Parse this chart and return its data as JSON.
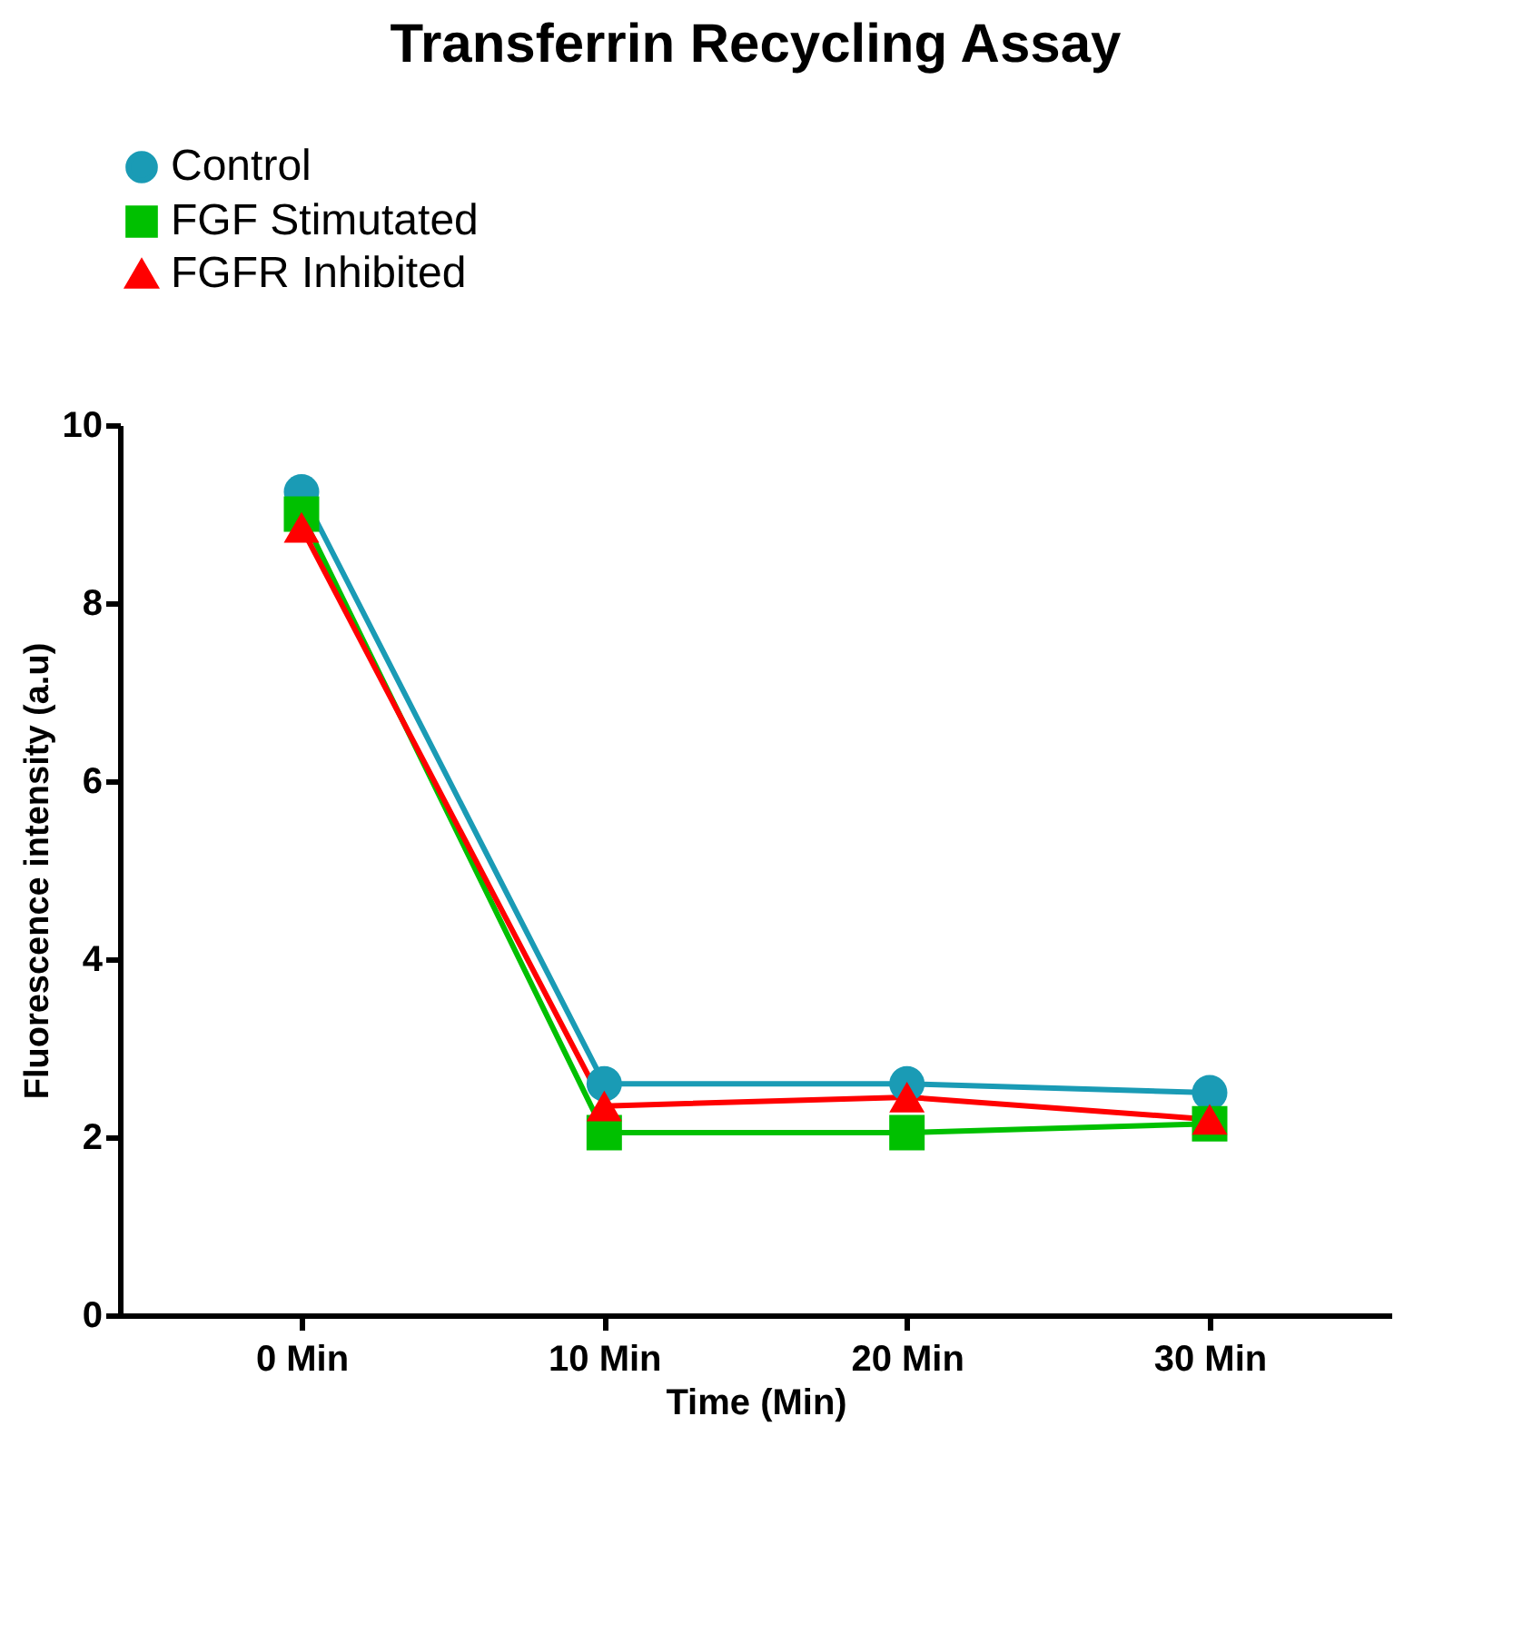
{
  "chart_data": {
    "type": "line",
    "title": "Transferrin Recycling Assay",
    "xlabel": "Time (Min)",
    "ylabel": "Fluorescence intensity (a.u)",
    "categories": [
      "0 Min",
      "10 Min",
      "20 Min",
      "30 Min"
    ],
    "series": [
      {
        "name": "Control",
        "color": "#1a9bb5",
        "marker": "circle",
        "values": [
          9.25,
          2.6,
          2.6,
          2.5
        ]
      },
      {
        "name": "FGF Stimutated",
        "color": "#00c000",
        "marker": "square",
        "values": [
          9.0,
          2.05,
          2.05,
          2.15
        ]
      },
      {
        "name": "FGFR Inhibited",
        "color": "#ff0000",
        "marker": "triangle",
        "values": [
          8.85,
          2.35,
          2.45,
          2.2
        ]
      }
    ],
    "ylim": [
      0,
      10
    ],
    "yticks": [
      0,
      2,
      4,
      6,
      8,
      10
    ],
    "grid": false,
    "legend": "top",
    "line_style": "solid"
  }
}
